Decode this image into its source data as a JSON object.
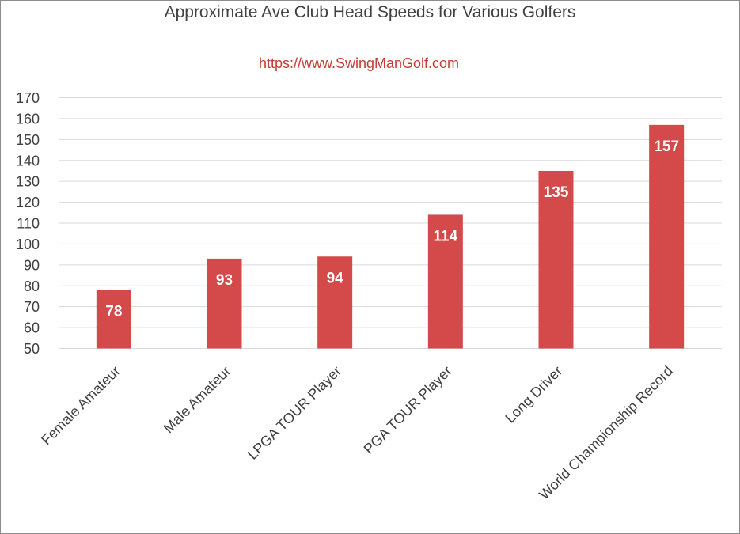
{
  "chart_data": {
    "type": "bar",
    "title": "Approximate Ave Club Head Speeds for Various Golfers",
    "subtitle": "https://www.SwingManGolf.com",
    "categories": [
      "Female Amateur",
      "Male Amateur",
      "LPGA TOUR Player",
      "PGA TOUR Player",
      "Long Driver",
      "World Championship Record"
    ],
    "values": [
      78,
      93,
      94,
      114,
      135,
      157
    ],
    "data_labels": [
      "78",
      "93",
      "94",
      "114",
      "135",
      "157"
    ],
    "ylim": [
      50,
      170
    ],
    "yticks": [
      "50",
      "60",
      "70",
      "80",
      "90",
      "100",
      "110",
      "120",
      "130",
      "140",
      "150",
      "160",
      "170"
    ],
    "xlabel": "",
    "ylabel": "",
    "grid": true,
    "legend": "none",
    "colors": {
      "bar": "#d44a4a",
      "grid": "#d9d9d9",
      "text": "#404040",
      "subtitle": "#c43b32"
    }
  }
}
